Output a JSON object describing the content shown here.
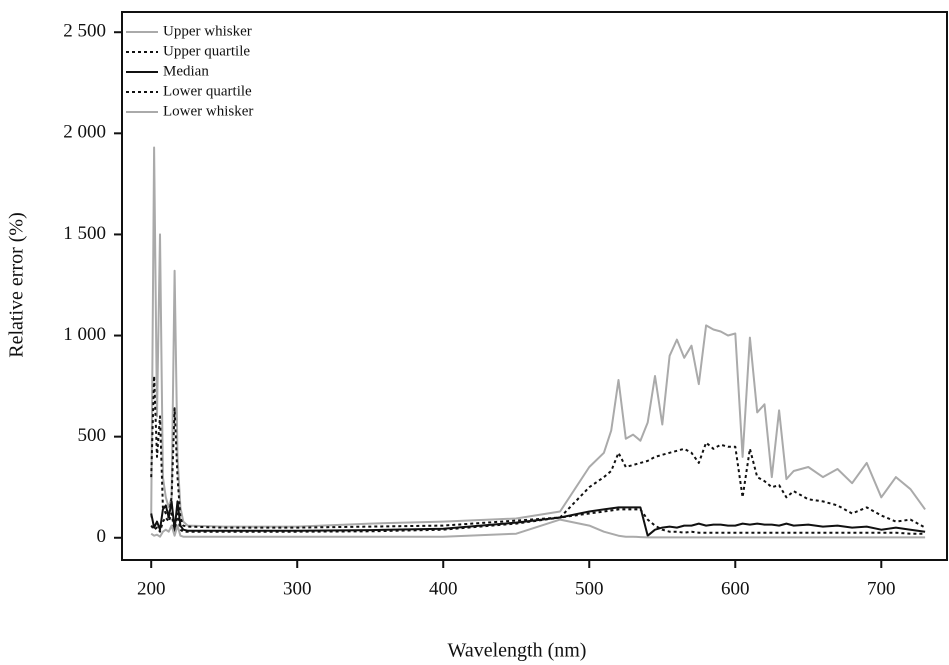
{
  "chart_data": {
    "type": "line",
    "x_label": "Wavelength (nm)",
    "y_label": "Relative error (%)",
    "x": [
      200,
      202,
      204,
      206,
      208,
      210,
      212,
      214,
      216,
      218,
      220,
      222,
      225,
      250,
      300,
      350,
      400,
      450,
      480,
      500,
      510,
      515,
      520,
      525,
      530,
      535,
      540,
      545,
      550,
      555,
      560,
      565,
      570,
      575,
      580,
      585,
      590,
      595,
      600,
      605,
      610,
      615,
      620,
      625,
      630,
      635,
      640,
      650,
      660,
      670,
      680,
      690,
      700,
      710,
      720,
      730
    ],
    "series": [
      {
        "name": "Upper whisker",
        "color": "#aaaaaa",
        "line_style": "solid",
        "values": [
          100,
          1930,
          600,
          1500,
          300,
          200,
          150,
          200,
          1320,
          400,
          150,
          80,
          60,
          55,
          55,
          70,
          80,
          95,
          130,
          350,
          420,
          530,
          780,
          490,
          510,
          480,
          570,
          800,
          560,
          900,
          980,
          890,
          950,
          760,
          1050,
          1030,
          1020,
          1000,
          1010,
          400,
          990,
          620,
          660,
          300,
          630,
          290,
          330,
          350,
          300,
          340,
          270,
          370,
          200,
          300,
          240,
          140
        ]
      },
      {
        "name": "Upper quartile",
        "color": "#111111",
        "line_style": "dotted",
        "values": [
          300,
          800,
          400,
          600,
          150,
          120,
          100,
          200,
          640,
          300,
          100,
          60,
          55,
          50,
          50,
          55,
          60,
          85,
          100,
          250,
          300,
          330,
          420,
          350,
          360,
          370,
          380,
          400,
          410,
          420,
          430,
          440,
          420,
          370,
          470,
          440,
          460,
          450,
          450,
          200,
          440,
          300,
          280,
          250,
          260,
          200,
          230,
          190,
          180,
          160,
          120,
          150,
          110,
          80,
          90,
          50
        ]
      },
      {
        "name": "Median",
        "color": "#111111",
        "line_style": "solid",
        "values": [
          120,
          50,
          80,
          40,
          140,
          160,
          100,
          180,
          40,
          180,
          60,
          40,
          35,
          35,
          35,
          38,
          45,
          75,
          100,
          130,
          140,
          145,
          150,
          150,
          150,
          150,
          10,
          40,
          50,
          55,
          50,
          60,
          60,
          70,
          60,
          65,
          65,
          60,
          60,
          70,
          65,
          70,
          65,
          65,
          60,
          70,
          60,
          65,
          55,
          60,
          50,
          55,
          40,
          50,
          40,
          30
        ]
      },
      {
        "name": "Lower quartile",
        "color": "#111111",
        "line_style": "dotted",
        "values": [
          60,
          40,
          50,
          30,
          80,
          100,
          80,
          120,
          30,
          120,
          40,
          30,
          30,
          30,
          30,
          32,
          40,
          70,
          100,
          120,
          130,
          135,
          140,
          140,
          140,
          140,
          90,
          60,
          40,
          30,
          30,
          25,
          30,
          25,
          25,
          25,
          25,
          25,
          25,
          25,
          25,
          25,
          25,
          25,
          25,
          25,
          25,
          25,
          25,
          25,
          25,
          25,
          25,
          25,
          20,
          20
        ]
      },
      {
        "name": "Lower whisker",
        "color": "#aaaaaa",
        "line_style": "solid",
        "values": [
          20,
          10,
          15,
          5,
          30,
          40,
          30,
          60,
          10,
          60,
          10,
          5,
          5,
          5,
          5,
          5,
          5,
          20,
          90,
          60,
          30,
          20,
          10,
          5,
          5,
          3,
          2,
          2,
          2,
          2,
          2,
          2,
          2,
          2,
          2,
          2,
          2,
          2,
          2,
          2,
          2,
          2,
          2,
          2,
          2,
          2,
          2,
          2,
          2,
          2,
          2,
          2,
          2,
          2,
          2,
          2
        ]
      }
    ],
    "xlim": [
      180,
      745
    ],
    "xticks": [
      200,
      300,
      400,
      500,
      600,
      700
    ],
    "ylim": [
      -110,
      2600
    ],
    "yticks": [
      0,
      500,
      {
        "value": 1000,
        "label": "1 000"
      },
      {
        "value": 1500,
        "label": "1 500"
      },
      {
        "value": 2000,
        "label": "2 000"
      },
      {
        "value": 2500,
        "label": "2 500"
      }
    ],
    "legend": "upper-left"
  }
}
